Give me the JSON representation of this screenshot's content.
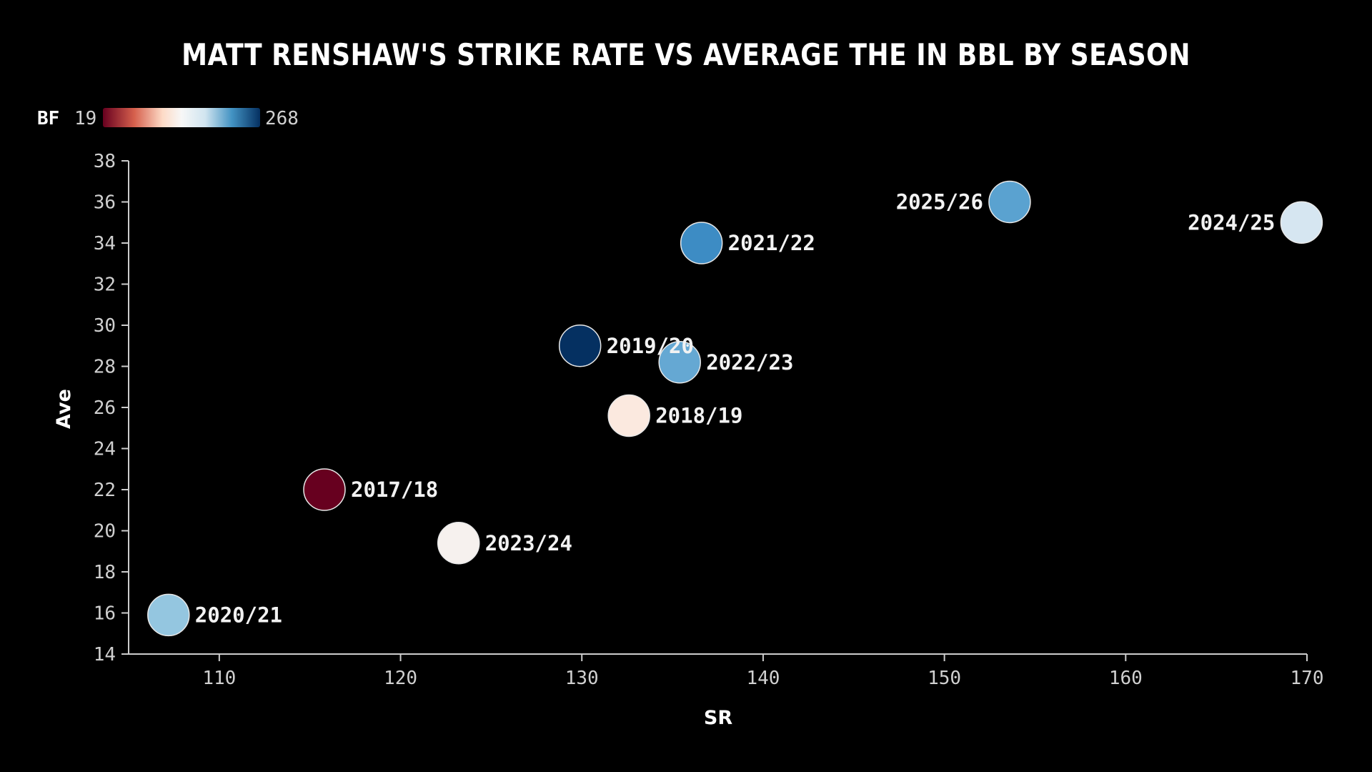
{
  "chart_data": {
    "type": "scatter",
    "title": "MATT RENSHAW'S STRIKE RATE VS AVERAGE THE IN BBL BY SEASON",
    "xlabel": "SR",
    "ylabel": "Ave",
    "xlim": [
      105,
      170
    ],
    "ylim": [
      14,
      38
    ],
    "xticks": [
      110,
      120,
      130,
      140,
      150,
      160,
      170
    ],
    "yticks": [
      14,
      16,
      18,
      20,
      22,
      24,
      26,
      28,
      30,
      32,
      34,
      36,
      38
    ],
    "grid": false,
    "color_legend": {
      "title": "BF",
      "min": 19,
      "max": 268,
      "placement": "top-left",
      "scale": "red-white-blue"
    },
    "points": [
      {
        "season": "2017/18",
        "sr": 115.8,
        "ave": 22.0,
        "color": "#67001f",
        "label_side": "right"
      },
      {
        "season": "2018/19",
        "sr": 132.6,
        "ave": 25.6,
        "color": "#fbe9df",
        "label_side": "right"
      },
      {
        "season": "2019/20",
        "sr": 129.9,
        "ave": 29.0,
        "color": "#053061",
        "label_side": "right"
      },
      {
        "season": "2020/21",
        "sr": 107.2,
        "ave": 15.9,
        "color": "#94c6e0",
        "label_side": "right"
      },
      {
        "season": "2021/22",
        "sr": 136.6,
        "ave": 34.0,
        "color": "#3d8cc4",
        "label_side": "right"
      },
      {
        "season": "2022/23",
        "sr": 135.4,
        "ave": 28.2,
        "color": "#65a8d3",
        "label_side": "right"
      },
      {
        "season": "2023/24",
        "sr": 123.2,
        "ave": 19.4,
        "color": "#f6f1ee",
        "label_side": "right"
      },
      {
        "season": "2024/25",
        "sr": 169.7,
        "ave": 35.0,
        "color": "#d6e6f1",
        "label_side": "left"
      },
      {
        "season": "2025/26",
        "sr": 153.6,
        "ave": 36.0,
        "color": "#5aa2d0",
        "label_side": "left"
      }
    ]
  }
}
